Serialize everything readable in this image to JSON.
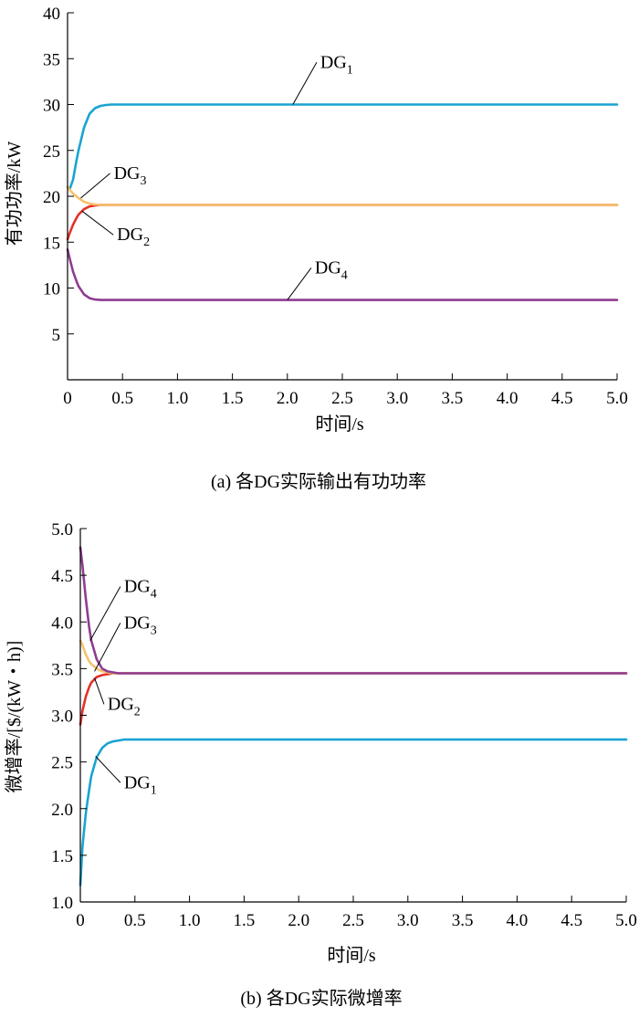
{
  "chart_data": [
    {
      "id": "a",
      "type": "line",
      "caption": "(a) 各DG实际输出有功功率",
      "xlabel": "时间/s",
      "ylabel": "有功功率/kW",
      "xlim": [
        0,
        5.0
      ],
      "ylim": [
        0,
        40
      ],
      "xticks": [
        "0",
        "0.5",
        "1.0",
        "1.5",
        "2.0",
        "2.5",
        "3.0",
        "3.5",
        "4.0",
        "4.5",
        "5.0"
      ],
      "yticks": [
        "5",
        "10",
        "15",
        "20",
        "25",
        "30",
        "35",
        "40"
      ],
      "grid": false,
      "series": [
        {
          "name": "DG1",
          "label_main": "DG",
          "label_sub": "1",
          "color": "#1aa3d2",
          "x": [
            0,
            0.02,
            0.05,
            0.08,
            0.1,
            0.15,
            0.2,
            0.25,
            0.3,
            0.35,
            0.4,
            0.5,
            1.0,
            2.0,
            3.0,
            4.0,
            5.0
          ],
          "y": [
            21,
            20.8,
            21.8,
            23.8,
            25.0,
            27.5,
            29.0,
            29.6,
            29.85,
            29.95,
            30,
            30,
            30,
            30,
            30,
            30,
            30
          ]
        },
        {
          "name": "DG2",
          "label_main": "DG",
          "label_sub": "2",
          "color": "#e3312b",
          "x": [
            0,
            0.02,
            0.05,
            0.08,
            0.1,
            0.15,
            0.2,
            0.25,
            0.3,
            0.35,
            0.4,
            0.5,
            1.0,
            2.0,
            3.0,
            4.0,
            5.0
          ],
          "y": [
            15.3,
            16.0,
            16.9,
            17.6,
            18.0,
            18.6,
            18.9,
            19.0,
            19.05,
            19.05,
            19.05,
            19.05,
            19.05,
            19.05,
            19.05,
            19.05,
            19.05
          ]
        },
        {
          "name": "DG3",
          "label_main": "DG",
          "label_sub": "3",
          "color": "#f5c26b",
          "x": [
            0,
            0.02,
            0.05,
            0.08,
            0.1,
            0.15,
            0.2,
            0.25,
            0.3,
            0.35,
            0.4,
            0.5,
            1.0,
            2.0,
            3.0,
            4.0,
            5.0
          ],
          "y": [
            21.0,
            20.7,
            20.3,
            20.0,
            19.8,
            19.4,
            19.2,
            19.1,
            19.05,
            19.05,
            19.05,
            19.05,
            19.05,
            19.05,
            19.05,
            19.05,
            19.05
          ]
        },
        {
          "name": "DG4",
          "label_main": "DG",
          "label_sub": "4",
          "color": "#8e3d91",
          "x": [
            0,
            0.02,
            0.05,
            0.08,
            0.1,
            0.15,
            0.2,
            0.25,
            0.3,
            0.35,
            0.4,
            0.5,
            1.0,
            2.0,
            3.0,
            4.0,
            5.0
          ],
          "y": [
            14.2,
            13.2,
            11.8,
            10.8,
            10.2,
            9.3,
            8.9,
            8.75,
            8.7,
            8.7,
            8.7,
            8.7,
            8.7,
            8.7,
            8.7,
            8.7,
            8.7
          ]
        }
      ],
      "annotations": [
        {
          "series": "DG1",
          "point": [
            2.05,
            30
          ],
          "label_at": [
            2.3,
            34.0
          ]
        },
        {
          "series": "DG3",
          "point": [
            0.12,
            19.8
          ],
          "label_at": [
            0.42,
            21.9
          ]
        },
        {
          "series": "DG2",
          "point": [
            0.13,
            18.4
          ],
          "label_at": [
            0.45,
            15.2
          ]
        },
        {
          "series": "DG4",
          "point": [
            2.0,
            8.7
          ],
          "label_at": [
            2.25,
            11.6
          ]
        }
      ]
    },
    {
      "id": "b",
      "type": "line",
      "caption": "(b) 各DG实际微增率",
      "xlabel": "时间/s",
      "ylabel": "微增率/[$/(kW・h)]",
      "xlim": [
        0,
        5.0
      ],
      "ylim": [
        1.0,
        5.0
      ],
      "xticks": [
        "0",
        "0.5",
        "1.0",
        "1.5",
        "2.0",
        "2.5",
        "3.0",
        "3.5",
        "4.0",
        "4.5",
        "5.0"
      ],
      "yticks": [
        "1.0",
        "1.5",
        "2.0",
        "2.5",
        "3.0",
        "3.5",
        "4.0",
        "4.5",
        "5.0"
      ],
      "grid": false,
      "series": [
        {
          "name": "DG1",
          "label_main": "DG",
          "label_sub": "1",
          "color": "#1aa3d2",
          "x": [
            0,
            0.02,
            0.05,
            0.08,
            0.1,
            0.15,
            0.2,
            0.25,
            0.3,
            0.35,
            0.4,
            0.5,
            1.0,
            2.0,
            3.0,
            4.0,
            5.0
          ],
          "y": [
            1.18,
            1.6,
            1.95,
            2.2,
            2.35,
            2.55,
            2.65,
            2.7,
            2.72,
            2.73,
            2.74,
            2.74,
            2.74,
            2.74,
            2.74,
            2.74,
            2.74
          ]
        },
        {
          "name": "DG2",
          "label_main": "DG",
          "label_sub": "2",
          "color": "#e3312b",
          "x": [
            0,
            0.02,
            0.05,
            0.08,
            0.1,
            0.15,
            0.2,
            0.25,
            0.3,
            0.35,
            0.4,
            0.5,
            1.0,
            2.0,
            3.0,
            4.0,
            5.0
          ],
          "y": [
            2.9,
            3.05,
            3.2,
            3.3,
            3.35,
            3.41,
            3.43,
            3.44,
            3.45,
            3.45,
            3.45,
            3.45,
            3.45,
            3.45,
            3.45,
            3.45,
            3.45
          ]
        },
        {
          "name": "DG3",
          "label_main": "DG",
          "label_sub": "3",
          "color": "#f5c26b",
          "x": [
            0,
            0.02,
            0.05,
            0.08,
            0.1,
            0.15,
            0.2,
            0.25,
            0.3,
            0.35,
            0.4,
            0.5,
            1.0,
            2.0,
            3.0,
            4.0,
            5.0
          ],
          "y": [
            3.8,
            3.75,
            3.65,
            3.58,
            3.55,
            3.5,
            3.47,
            3.46,
            3.45,
            3.45,
            3.45,
            3.45,
            3.45,
            3.45,
            3.45,
            3.45,
            3.45
          ]
        },
        {
          "name": "DG4",
          "label_main": "DG",
          "label_sub": "4",
          "color": "#8e3d91",
          "x": [
            0,
            0.02,
            0.05,
            0.08,
            0.1,
            0.15,
            0.2,
            0.25,
            0.3,
            0.35,
            0.4,
            0.5,
            1.0,
            2.0,
            3.0,
            4.0,
            5.0
          ],
          "y": [
            4.8,
            4.6,
            4.25,
            3.95,
            3.8,
            3.6,
            3.5,
            3.47,
            3.46,
            3.45,
            3.45,
            3.45,
            3.45,
            3.45,
            3.45,
            3.45,
            3.45
          ]
        }
      ],
      "annotations": [
        {
          "series": "DG4",
          "point": [
            0.09,
            3.8
          ],
          "label_at": [
            0.4,
            4.32
          ]
        },
        {
          "series": "DG3",
          "point": [
            0.13,
            3.47
          ],
          "label_at": [
            0.4,
            3.93
          ]
        },
        {
          "series": "DG2",
          "point": [
            0.13,
            3.4
          ],
          "label_at": [
            0.25,
            3.06
          ]
        },
        {
          "series": "DG1",
          "point": [
            0.14,
            2.56
          ],
          "label_at": [
            0.4,
            2.22
          ]
        }
      ]
    }
  ]
}
